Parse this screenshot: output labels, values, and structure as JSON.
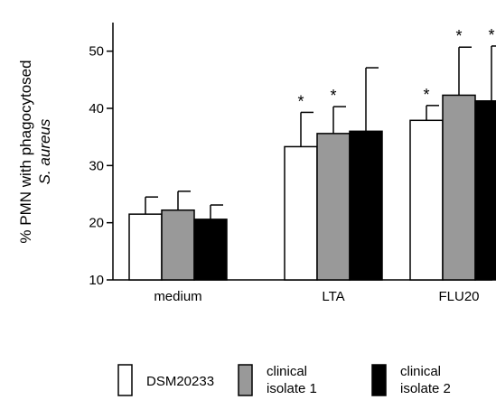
{
  "chart_data": {
    "type": "bar",
    "ylabel": [
      "% PMN with phagocytosed",
      "S. aureus"
    ],
    "ylim": [
      10,
      55
    ],
    "yticks": [
      10,
      20,
      30,
      40,
      50
    ],
    "categories": [
      "medium",
      "LTA",
      "FLU20"
    ],
    "series": [
      {
        "name": "DSM20233",
        "color": "#ffffff",
        "values": [
          21.5,
          33.3,
          37.9
        ],
        "errors": [
          3.0,
          6.0,
          2.6
        ]
      },
      {
        "name": "clinical isolate 1",
        "color": "#999999",
        "values": [
          22.2,
          35.6,
          42.3
        ],
        "errors": [
          3.3,
          4.7,
          8.4
        ]
      },
      {
        "name": "clinical isolate 2",
        "color": "#000000",
        "values": [
          20.6,
          36.0,
          41.3
        ],
        "errors": [
          2.5,
          11.1,
          9.6
        ]
      }
    ],
    "significance": [
      [
        false,
        false,
        false
      ],
      [
        true,
        true,
        false
      ],
      [
        true,
        true,
        true
      ]
    ],
    "significance_marker": "*",
    "legend": [
      {
        "lines": [
          "DSM20233"
        ]
      },
      {
        "lines": [
          "clinical",
          "isolate 1"
        ]
      },
      {
        "lines": [
          "clinical",
          "isolate 2"
        ]
      }
    ],
    "legend_position": "bottom"
  }
}
